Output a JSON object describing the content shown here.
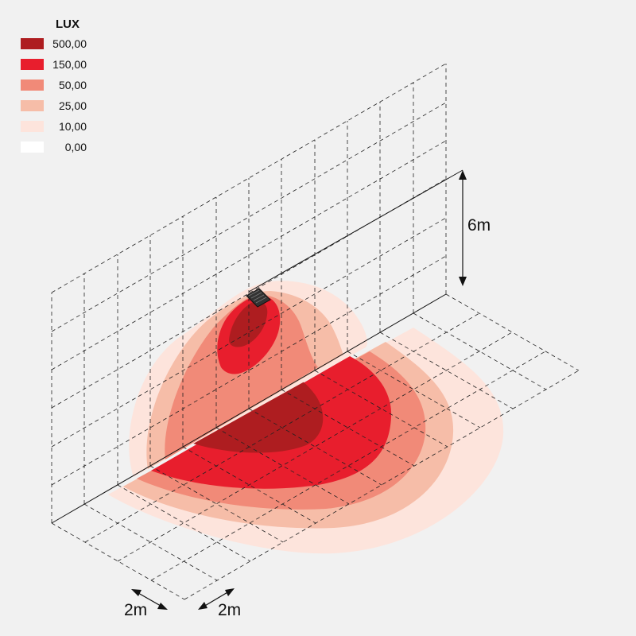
{
  "legend": {
    "title": "LUX",
    "items": [
      {
        "label": "500,00",
        "color": "#ae1d20"
      },
      {
        "label": "150,00",
        "color": "#e81e2d"
      },
      {
        "label": "50,00",
        "color": "#f18a78"
      },
      {
        "label": "25,00",
        "color": "#f6bda8"
      },
      {
        "label": "10,00",
        "color": "#fde4dc"
      },
      {
        "label": "0,00",
        "color": "#ffffff"
      }
    ]
  },
  "dimensions": {
    "height": "6m",
    "grid_depth": "2m",
    "grid_width": "2m"
  }
}
